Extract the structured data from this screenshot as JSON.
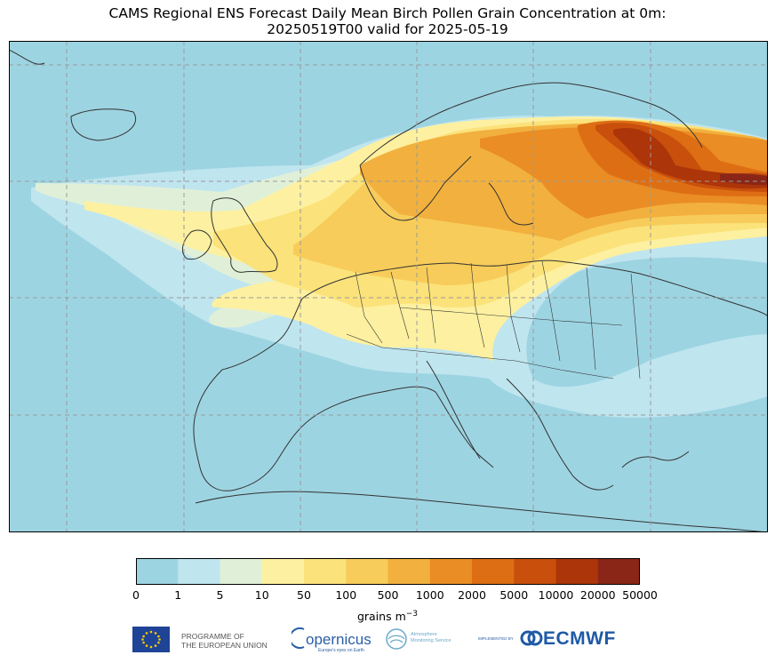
{
  "title": {
    "line1": "CAMS Regional ENS Forecast Daily Mean Birch Pollen Grain Concentration at 0m:",
    "line2": "20250519T00 valid for 2025-05-19"
  },
  "map": {
    "ocean_color": "#9dd4e2",
    "land_background_color": "#9dd4e2",
    "coastline_color": "#333333",
    "gridline_color": "#9a9a9a",
    "gridlines": "dashed"
  },
  "colorbar": {
    "levels": [
      "0",
      "1",
      "5",
      "10",
      "50",
      "100",
      "500",
      "1000",
      "2000",
      "5000",
      "10000",
      "20000",
      "50000"
    ],
    "colors": [
      "#9dd4e2",
      "#bfe5ef",
      "#e0f0d8",
      "#fdf0a0",
      "#fbe27a",
      "#f7cc5a",
      "#f2b03e",
      "#e98d24",
      "#de6e14",
      "#c9500c",
      "#ad350a",
      "#8a2617"
    ],
    "units_label": "grains m",
    "units_exponent": "−3"
  },
  "logos": {
    "eu_line1": "PROGRAMME OF",
    "eu_line2": "THE EUROPEAN UNION",
    "copernicus": "opernicus",
    "copernicus_tagline": "Europe's eyes on Earth",
    "cams_line1": "Atmosphere",
    "cams_line2": "Monitoring Service",
    "ecmwf_small": "IMPLEMENTED BY",
    "ecmwf": "ECMWF"
  }
}
